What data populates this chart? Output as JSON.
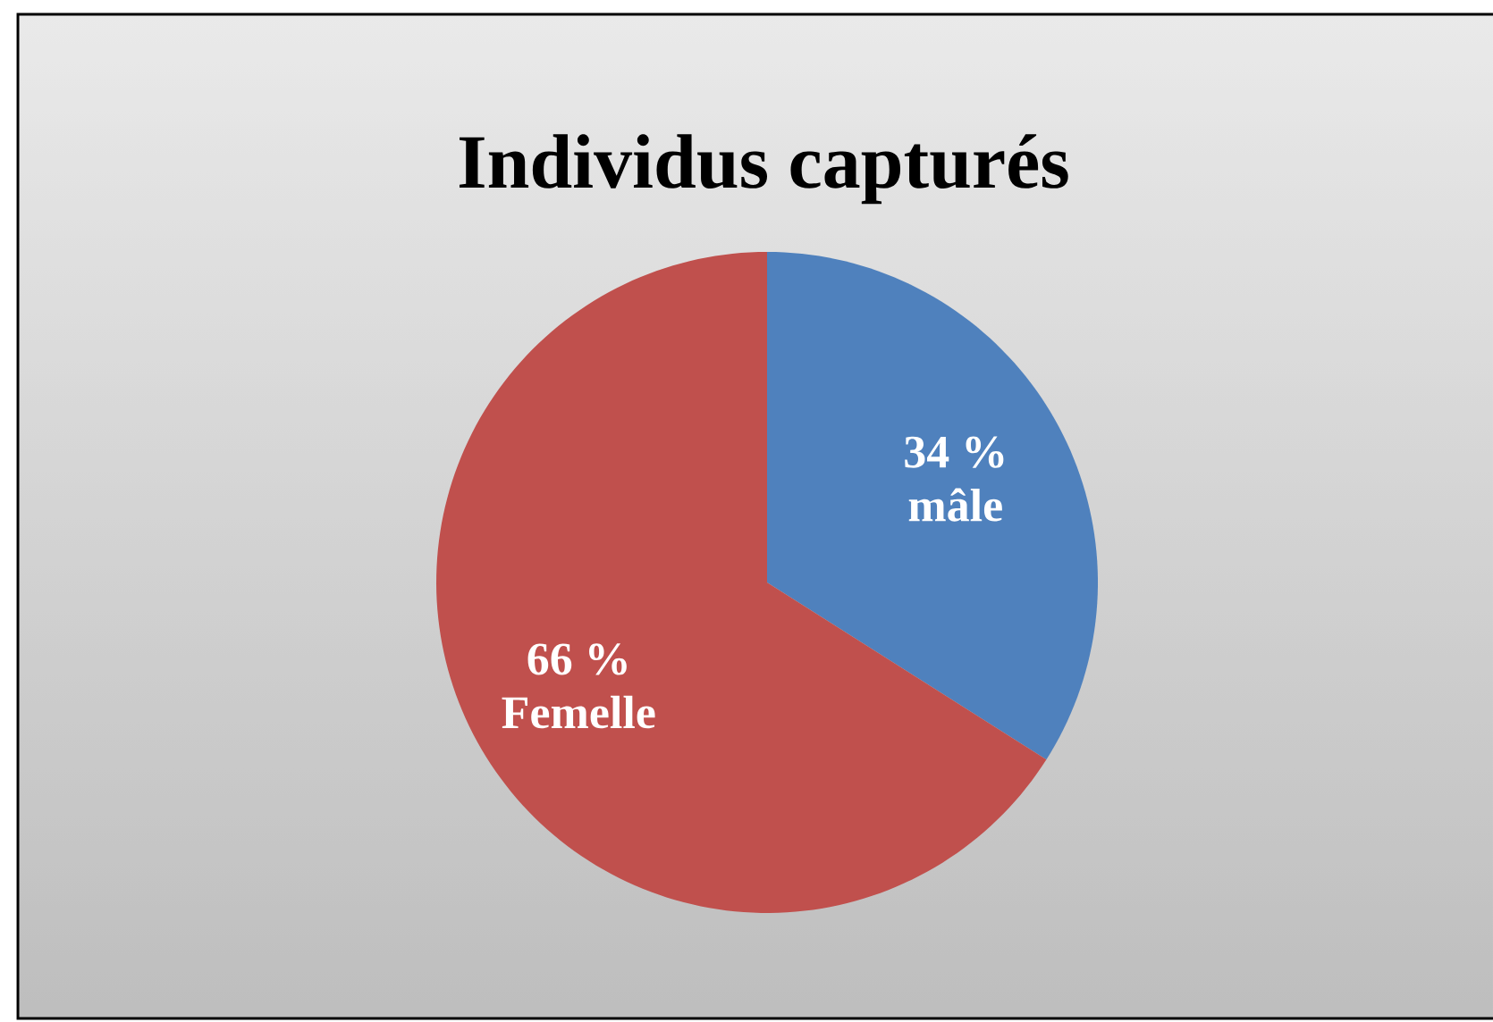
{
  "chart_data": {
    "type": "pie",
    "title": "Individus capturés",
    "categories": [
      "mâle",
      "Femelle"
    ],
    "values": [
      34,
      66
    ],
    "colors": [
      "#4f81bd",
      "#c0504d"
    ],
    "value_labels": [
      "34 %",
      "66 %"
    ]
  }
}
